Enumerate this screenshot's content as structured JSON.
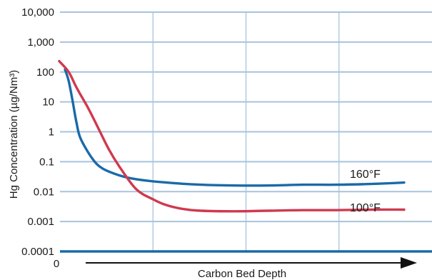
{
  "chart_data": {
    "type": "line",
    "title": "",
    "xlabel": "Carbon  Bed Depth",
    "ylabel": "Hg Concentration (µg/Nm³)",
    "y_scale": "log",
    "ylim": [
      0.0001,
      10000
    ],
    "y_tick_labels": [
      "10,000",
      "1,000",
      "100",
      "10",
      "1",
      "0.1",
      "0.01",
      "0.001",
      "0.0001"
    ],
    "y_tick_values": [
      10000,
      1000,
      100,
      10,
      1,
      0.1,
      0.01,
      0.001,
      0.0001
    ],
    "x_origin_label": "0",
    "xlim": [
      0,
      1
    ],
    "x_ticks_shown": false,
    "x_axis_arrow": true,
    "grid": true,
    "legend": "none",
    "colors": {
      "grid": "#a8c3de",
      "axis": "#1a6aa8",
      "arrow": "#111111"
    },
    "series": [
      {
        "name": "160°F",
        "color": "#1a6aa8",
        "x": [
          0.0,
          0.011,
          0.023,
          0.034,
          0.046,
          0.08,
          0.11,
          0.16,
          0.21,
          0.3,
          0.4,
          0.5,
          0.6,
          0.7,
          0.8,
          0.9,
          1.0
        ],
        "y": [
          120,
          50,
          10,
          2,
          0.6,
          0.13,
          0.06,
          0.035,
          0.026,
          0.02,
          0.017,
          0.016,
          0.016,
          0.017,
          0.017,
          0.018,
          0.02
        ]
      },
      {
        "name": "100°F",
        "color": "#cf3a4f",
        "x": [
          -0.017,
          0.011,
          0.034,
          0.069,
          0.1,
          0.13,
          0.16,
          0.21,
          0.26,
          0.3,
          0.35,
          0.4,
          0.5,
          0.6,
          0.7,
          0.8,
          0.9,
          1.0
        ],
        "y": [
          230,
          100,
          30,
          6,
          1.2,
          0.25,
          0.07,
          0.012,
          0.0055,
          0.0035,
          0.0026,
          0.0023,
          0.0022,
          0.0023,
          0.0024,
          0.0024,
          0.0025,
          0.0025
        ]
      }
    ]
  }
}
